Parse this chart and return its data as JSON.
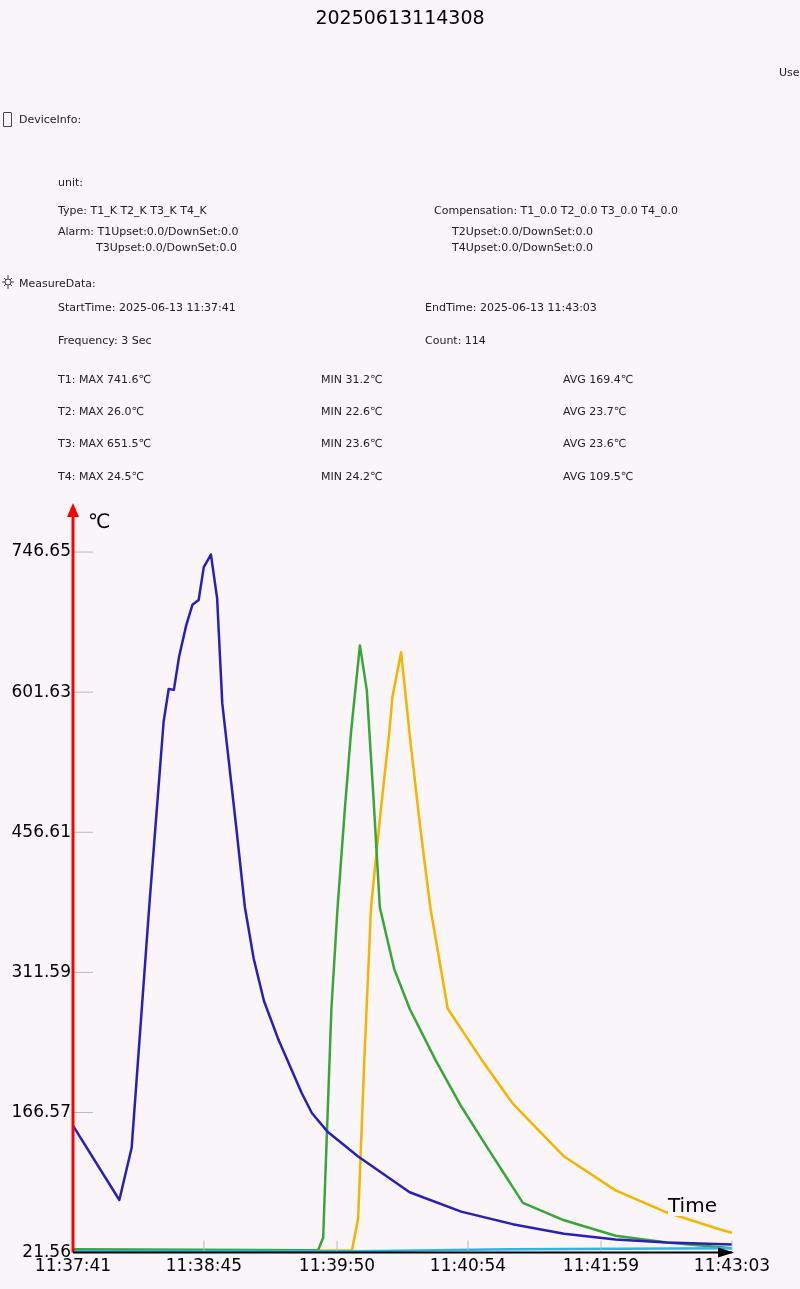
{
  "chart_data": {
    "type": "line",
    "title": "20250613114308",
    "xlabel": "Time",
    "ylabel": "℃",
    "annotations": [
      "DeviceInfo:",
      "unit:",
      "Type:  T1_K T2_K T3_K T4_K",
      "Compensation:  T1_0.0 T2_0.0 T3_0.0 T4_0.0",
      "Alarm:  T1Upset:0.0/DownSet:0.0",
      "T3Upset:0.0/DownSet:0.0",
      "T2Upset:0.0/DownSet:0.0",
      "T4Upset:0.0/DownSet:0.0",
      "MeasureData:",
      "StartTime:  2025-06-13 11:37:41",
      "EndTime:  2025-06-13 11:43:03",
      "Frequency:  3 Sec",
      "Count:  114",
      "T1:  MAX 741.6℃",
      "MIN 31.2℃",
      "AVG 169.4℃",
      "T2:  MAX 26.0℃",
      "MIN 22.6℃",
      "AVG 23.7℃",
      "T3:  MAX 651.5℃",
      "MIN 23.6℃",
      "AVG 23.6℃",
      "T4:  MAX 24.5℃",
      "MIN 24.2℃",
      "AVG 109.5℃",
      "Use"
    ],
    "xlim": [
      11.62806,
      11.7175
    ],
    "xticks": [
      {
        "value": 11.62806,
        "label": "11:37:41"
      },
      {
        "value": 11.64583,
        "label": "11:38:45"
      },
      {
        "value": 11.66389,
        "label": "11:39:50"
      },
      {
        "value": 11.68167,
        "label": "11:40:54"
      },
      {
        "value": 11.69972,
        "label": "11:41:59"
      },
      {
        "value": 11.7175,
        "label": "11:43:03"
      }
    ],
    "ylim": [
      21.56,
      785
    ],
    "yticks": [
      21.56,
      166.57,
      311.59,
      456.61,
      601.63,
      746.65
    ],
    "marker": "none",
    "line_style": "solid",
    "series": [
      {
        "color": "#2a1fb8",
        "x": [
          11.62806,
          11.63435,
          11.63602,
          11.6384,
          11.64036,
          11.64105,
          11.64175,
          11.64245,
          11.64343,
          11.64427,
          11.64511,
          11.64581,
          11.64678,
          11.64762,
          11.64832,
          11.65014,
          11.65139,
          11.65258,
          11.65398,
          11.65594,
          11.65908,
          11.66048,
          11.66257,
          11.66676,
          11.67375,
          11.68074,
          11.68772,
          11.69471,
          11.7017,
          11.70868,
          11.7175
        ],
        "values": [
          153,
          76,
          130,
          379,
          571,
          605,
          604,
          638,
          671,
          692,
          697,
          731,
          744,
          699,
          590,
          467,
          379,
          326,
          282,
          242,
          187,
          166,
          147,
          121,
          84,
          64,
          51,
          41,
          35,
          32,
          30
        ]
      },
      {
        "color": "#29b6e8",
        "x": [
          11.62806,
          11.66676,
          11.68772,
          11.7175
        ],
        "values": [
          23,
          23,
          25,
          26
        ]
      },
      {
        "color": "#3aa63a",
        "x": [
          11.62806,
          11.66132,
          11.66201,
          11.66313,
          11.66397,
          11.66495,
          11.66579,
          11.667,
          11.66793,
          11.66886,
          11.6697,
          11.67166,
          11.67375,
          11.67725,
          11.68074,
          11.68423,
          11.68912,
          11.69471,
          11.7017,
          11.70868,
          11.7175
        ],
        "values": [
          25,
          24,
          37,
          274,
          379,
          480,
          560,
          650,
          604,
          490,
          379,
          315,
          274,
          221,
          173,
          131,
          73,
          55,
          39,
          32,
          26
        ]
      },
      {
        "color": "#f5b400",
        "x": [
          11.62806,
          11.66593,
          11.66676,
          11.6676,
          11.66851,
          11.66984,
          11.67096,
          11.67142,
          11.67259,
          11.67375,
          11.67515,
          11.67655,
          11.67892,
          11.68353,
          11.68772,
          11.69471,
          11.7017,
          11.70868,
          11.71567,
          11.7175
        ],
        "values": [
          23,
          24,
          57,
          221,
          379,
          480,
          558,
          597,
          643,
          558,
          464,
          379,
          274,
          221,
          176,
          121,
          86,
          63,
          46,
          42
        ]
      }
    ]
  }
}
